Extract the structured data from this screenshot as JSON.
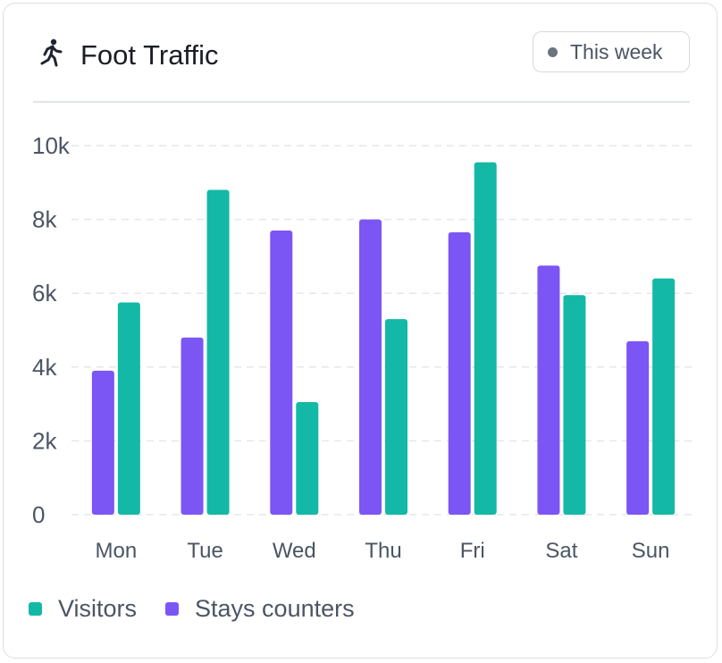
{
  "header": {
    "title": "Foot Traffic",
    "icon": "running-person-icon",
    "period_label": "This week"
  },
  "colors": {
    "visitors": "#14b8a6",
    "stays": "#7c55f5",
    "grid": "#e5e7eb",
    "axis_text": "#4b5563"
  },
  "chart_data": {
    "type": "bar",
    "title": "Foot Traffic",
    "xlabel": "",
    "ylabel": "",
    "categories": [
      "Mon",
      "Tue",
      "Wed",
      "Thu",
      "Fri",
      "Sat",
      "Sun"
    ],
    "series": [
      {
        "name": "Stays counters",
        "values": [
          3900,
          4800,
          7700,
          8000,
          7650,
          6750,
          4700
        ]
      },
      {
        "name": "Visitors",
        "values": [
          5750,
          8800,
          3050,
          5300,
          9550,
          5950,
          6400
        ]
      }
    ],
    "y_ticks": [
      0,
      2000,
      4000,
      6000,
      8000,
      10000
    ],
    "y_tick_labels": [
      "0",
      "2k",
      "4k",
      "6k",
      "8k",
      "10k"
    ],
    "ylim": [
      0,
      10000
    ],
    "grid": true,
    "grid_style": "dashed",
    "legend_position": "bottom-left"
  },
  "legend": [
    {
      "label": "Visitors",
      "color": "#14b8a6"
    },
    {
      "label": "Stays counters",
      "color": "#7c55f5"
    }
  ]
}
